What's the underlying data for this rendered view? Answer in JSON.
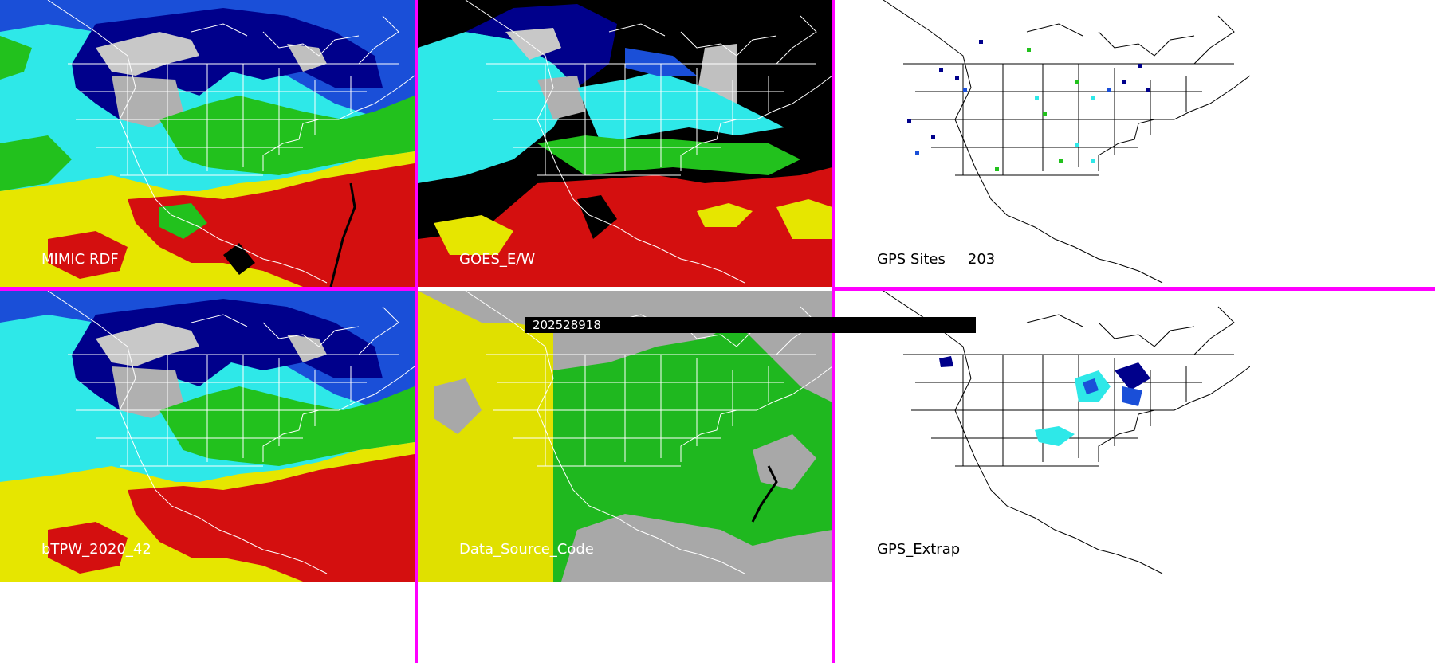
{
  "panels": {
    "mimic_rdf": {
      "label": "MIMIC RDF"
    },
    "goes": {
      "label": "GOES_E/W"
    },
    "gps_sites": {
      "label": "GPS Sites",
      "count": "203"
    },
    "btpw": {
      "label": "bTPW_2020_42"
    },
    "data_source": {
      "label": "Data_Source_Code"
    },
    "gps_extrap": {
      "label": "GPS_Extrap"
    }
  },
  "timestamp": "202528918",
  "colors": {
    "divider": "#ff00ff",
    "timestamp_bar": "#000000",
    "label_text": "#ffffff",
    "white_label_text": "#000000",
    "tpw_dry_navy": "#00008b",
    "tpw_blue": "#1a4fd8",
    "tpw_cyan": "#2ee8e8",
    "tpw_green": "#22c11d",
    "tpw_yellow": "#e6e600",
    "tpw_red": "#d40f0f",
    "source_gray": "#a8a8a8",
    "source_yellow": "#e0e000",
    "source_green": "#1fb81f"
  }
}
